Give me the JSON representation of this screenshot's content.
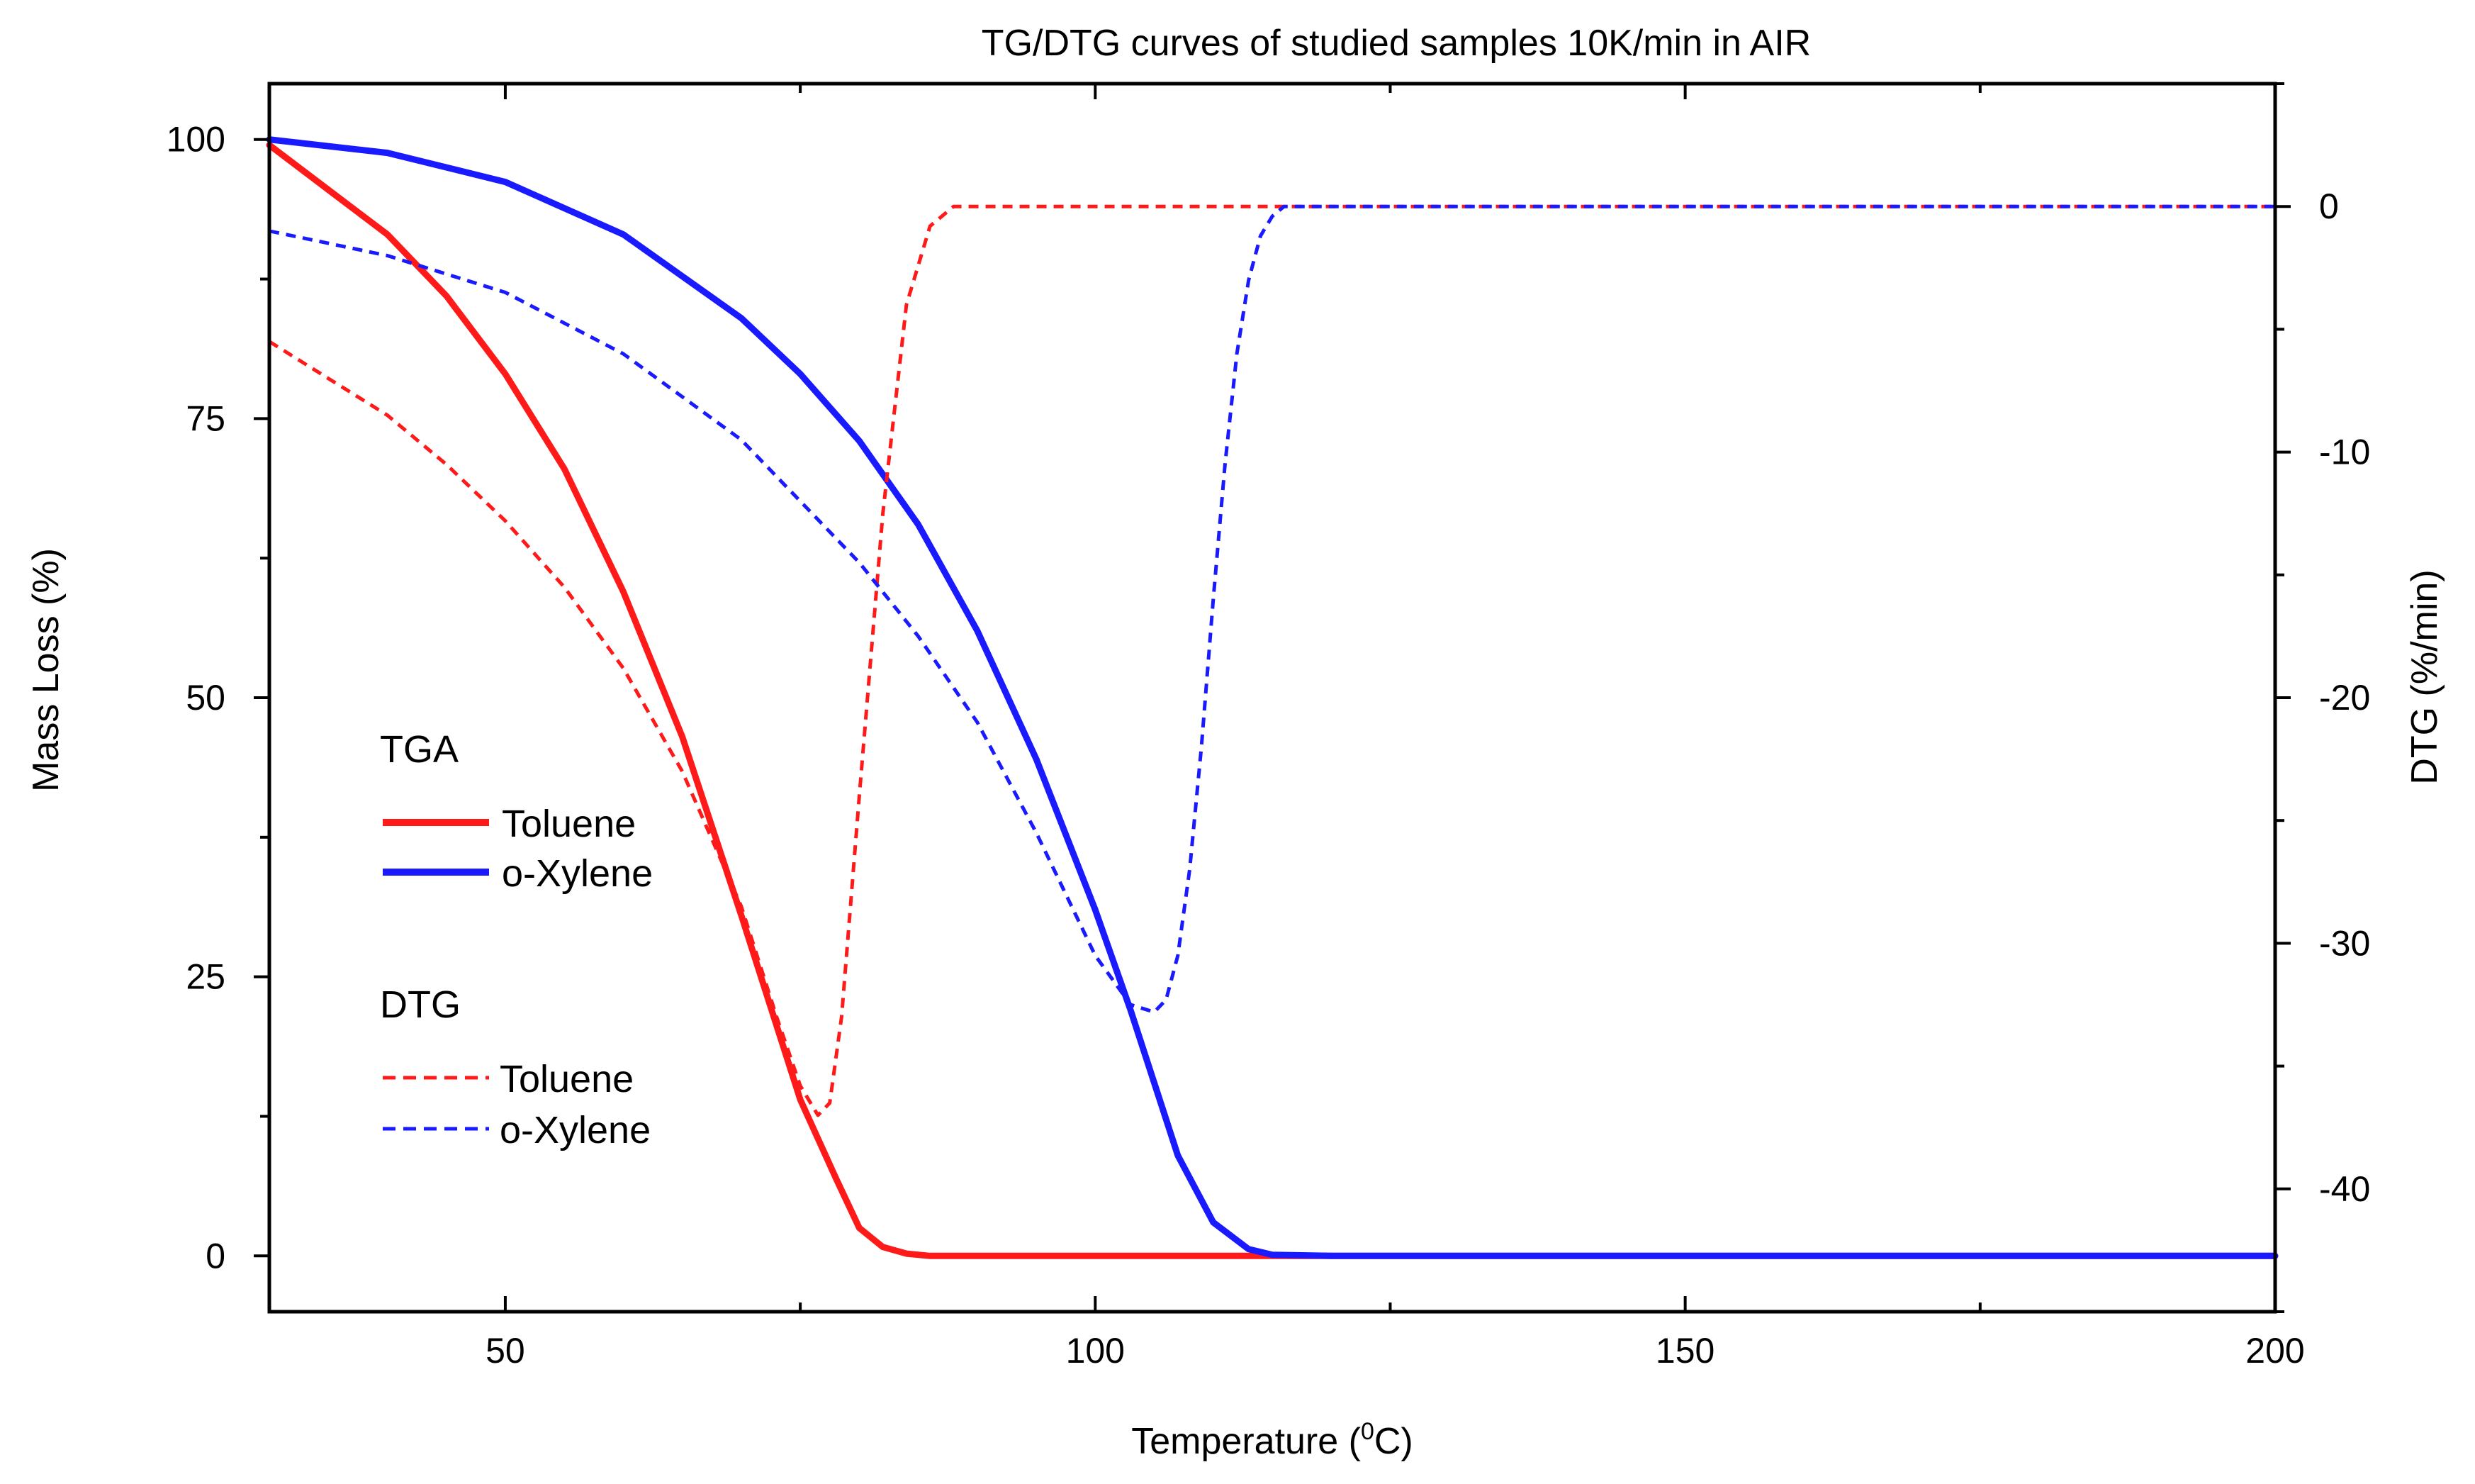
{
  "chart_data": {
    "type": "line",
    "title": "TG/DTG curves of studied samples 10K/min in AIR",
    "xlabel": "Temperature (",
    "xlabel_sup": "0",
    "xlabel_suffix": "C)",
    "ylabel": "Mass Loss (%)",
    "y2label": "DTG (%/min)",
    "xlim": [
      30,
      200
    ],
    "ylim": [
      -5,
      105
    ],
    "y2lim": [
      -45,
      5
    ],
    "x_ticks": [
      50,
      100,
      150,
      200
    ],
    "x_tick_labels": [
      "50",
      "100",
      "150",
      "200"
    ],
    "y_ticks": [
      0,
      25,
      50,
      75,
      100
    ],
    "y_tick_labels": [
      "0",
      "25",
      "50",
      "75",
      "100"
    ],
    "y2_ticks": [
      0,
      -10,
      -20,
      -30,
      -40
    ],
    "y2_tick_labels": [
      "0",
      "-10",
      "-20",
      "-30",
      "-40"
    ],
    "legend": {
      "placement": "center-left",
      "group1_title": "TGA",
      "group2_title": "DTG",
      "entries": [
        {
          "group": "TGA",
          "label": "Toluene",
          "style": "solid",
          "color": "#ff1a1a"
        },
        {
          "group": "TGA",
          "label": "o-Xylene",
          "style": "solid",
          "color": "#1a1aff"
        },
        {
          "group": "DTG",
          "label": "Toluene",
          "style": "dashed",
          "color": "#ff1a1a"
        },
        {
          "group": "DTG",
          "label": "o-Xylene",
          "style": "dashed",
          "color": "#1a1aff"
        }
      ]
    },
    "series": [
      {
        "name": "TGA Toluene",
        "axis": "left",
        "style": "solid",
        "color": "#ff1a1a",
        "x": [
          30,
          35,
          40,
          45,
          50,
          55,
          60,
          65,
          70,
          75,
          78,
          80,
          82,
          84,
          86,
          90,
          100,
          120,
          150,
          175,
          200
        ],
        "y": [
          99.5,
          95.5,
          91.5,
          86,
          79,
          70.5,
          59.5,
          46.5,
          30.5,
          14,
          7,
          2.5,
          0.8,
          0.2,
          0,
          0,
          0,
          0,
          0,
          0,
          0
        ]
      },
      {
        "name": "TGA o-Xylene",
        "axis": "left",
        "style": "solid",
        "color": "#1a1aff",
        "x": [
          30,
          40,
          50,
          60,
          70,
          75,
          80,
          85,
          90,
          95,
          100,
          103,
          105,
          107,
          110,
          113,
          115,
          120,
          150,
          175,
          200
        ],
        "y": [
          100,
          98.8,
          96.2,
          91.5,
          84,
          79,
          73,
          65.5,
          56,
          44.5,
          31,
          22,
          15.5,
          9,
          3,
          0.6,
          0.1,
          0,
          0,
          0,
          0
        ]
      },
      {
        "name": "DTG Toluene",
        "axis": "right",
        "style": "dashed",
        "color": "#ff1a1a",
        "x": [
          30,
          35,
          40,
          45,
          50,
          55,
          60,
          65,
          70,
          73,
          75,
          76.5,
          77.5,
          78.5,
          80,
          82,
          84,
          86,
          88,
          90,
          100,
          120,
          150,
          175,
          200
        ],
        "y": [
          -5.5,
          -7,
          -8.5,
          -10.5,
          -12.8,
          -15.5,
          -18.8,
          -23,
          -28.5,
          -33,
          -35.8,
          -37,
          -36.5,
          -33,
          -24,
          -12.5,
          -4,
          -0.8,
          0,
          0,
          0,
          0,
          0,
          0,
          0
        ]
      },
      {
        "name": "DTG o-Xylene",
        "axis": "right",
        "style": "dashed",
        "color": "#1a1aff",
        "x": [
          30,
          40,
          50,
          60,
          70,
          80,
          85,
          90,
          95,
          100,
          103,
          105,
          106,
          107,
          108,
          109,
          110,
          111,
          112,
          113,
          114,
          115,
          116,
          118,
          120,
          150,
          175,
          200
        ],
        "y": [
          -1,
          -2,
          -3.5,
          -6,
          -9.5,
          -14.5,
          -17.5,
          -21,
          -25.5,
          -30.5,
          -32.5,
          -32.8,
          -32.3,
          -30.5,
          -27,
          -22,
          -16,
          -10.5,
          -6,
          -3,
          -1.2,
          -0.4,
          0,
          0,
          0,
          0,
          0,
          0
        ]
      }
    ]
  }
}
